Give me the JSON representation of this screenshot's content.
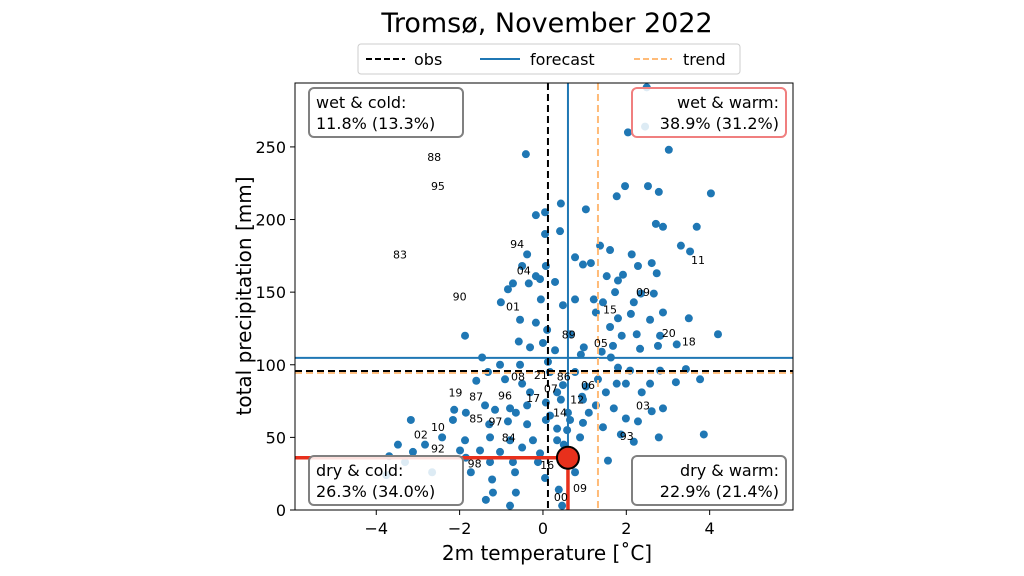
{
  "chart_data": {
    "type": "scatter",
    "title": "Tromsø, November 2022",
    "xlabel": "2m temperature [˚C]",
    "ylabel": "total precipitation [mm]",
    "xlim": [
      -5.95,
      6.0
    ],
    "ylim": [
      0,
      294
    ],
    "xticks": [
      -4,
      -2,
      0,
      2,
      4
    ],
    "xtick_labels": [
      "−4",
      "−2",
      "0",
      "2",
      "4"
    ],
    "yticks": [
      0,
      50,
      100,
      150,
      200,
      250
    ],
    "ytick_labels": [
      "0",
      "50",
      "100",
      "150",
      "200",
      "250"
    ],
    "grid": false,
    "legend": {
      "placement": "top-center",
      "entries": [
        {
          "label": "obs",
          "color": "#000000",
          "style": "dashed"
        },
        {
          "label": "forecast",
          "color": "#1f77b4",
          "style": "solid"
        },
        {
          "label": "trend",
          "color": "#ffbb78",
          "style": "dashed"
        }
      ]
    },
    "reference_lines": {
      "obs": {
        "temperature": 0.12,
        "precipitation": 95.7
      },
      "forecast": {
        "temperature": 0.6,
        "precipitation": 104.7
      },
      "trend": {
        "temperature": 1.32,
        "precipitation": 94.4
      }
    },
    "forecast_point": {
      "temperature": 0.6,
      "precipitation": 36,
      "color": "#e8301c"
    },
    "point_color": "#1f77b4",
    "quadrants": [
      {
        "name": "wet-cold",
        "title": "wet & cold:",
        "value": "11.8% (13.3%)",
        "position": "top-left",
        "border": "#808080"
      },
      {
        "name": "wet-warm",
        "title": "wet & warm:",
        "value": "38.9% (31.2%)",
        "position": "top-right",
        "border": "#f07f7f"
      },
      {
        "name": "dry-cold",
        "title": "dry & cold:",
        "value": "26.3% (34.0%)",
        "position": "bottom-left",
        "border": "#808080"
      },
      {
        "name": "dry-warm",
        "title": "dry & warm:",
        "value": "22.9% (21.4%)",
        "position": "bottom-right",
        "border": "#808080"
      }
    ],
    "year_labels": [
      {
        "label": "88",
        "x": -2.61,
        "y": 243
      },
      {
        "label": "95",
        "x": -2.52,
        "y": 223
      },
      {
        "label": "83",
        "x": -3.43,
        "y": 176
      },
      {
        "label": "94",
        "x": -0.62,
        "y": 183
      },
      {
        "label": "04",
        "x": -0.46,
        "y": 165
      },
      {
        "label": "90",
        "x": -2.0,
        "y": 147
      },
      {
        "label": "01",
        "x": -0.72,
        "y": 140
      },
      {
        "label": "11",
        "x": 3.72,
        "y": 172
      },
      {
        "label": "09",
        "x": 2.4,
        "y": 150
      },
      {
        "label": "15",
        "x": 1.61,
        "y": 138
      },
      {
        "label": "20",
        "x": 3.02,
        "y": 122
      },
      {
        "label": "18",
        "x": 3.5,
        "y": 116
      },
      {
        "label": "05",
        "x": 1.39,
        "y": 115
      },
      {
        "label": "89",
        "x": 0.62,
        "y": 121
      },
      {
        "label": "08",
        "x": -0.6,
        "y": 92
      },
      {
        "label": "21",
        "x": -0.05,
        "y": 93
      },
      {
        "label": "86",
        "x": 0.5,
        "y": 92
      },
      {
        "label": "07",
        "x": 0.19,
        "y": 87
      },
      {
        "label": "06",
        "x": 1.08,
        "y": 86
      },
      {
        "label": "19",
        "x": -2.1,
        "y": 81
      },
      {
        "label": "87",
        "x": -1.82,
        "y": 78
      },
      {
        "label": "96",
        "x": -0.91,
        "y": 79
      },
      {
        "label": "17",
        "x": -0.02,
        "y": 77
      },
      {
        "label": "12",
        "x": 0.82,
        "y": 76
      },
      {
        "label": "03",
        "x": 2.4,
        "y": 72
      },
      {
        "label": "14",
        "x": 0.41,
        "y": 67
      },
      {
        "label": "85",
        "x": -1.6,
        "y": 63
      },
      {
        "label": "97",
        "x": -1.5,
        "y": 61
      },
      {
        "label": "10",
        "x": -2.52,
        "y": 57
      },
      {
        "label": "02",
        "x": -2.93,
        "y": 52
      },
      {
        "label": "84",
        "x": -0.82,
        "y": 50
      },
      {
        "label": "93",
        "x": 2.01,
        "y": 51
      },
      {
        "label": "92",
        "x": -2.52,
        "y": 39
      },
      {
        "label": "98",
        "x": -2.0,
        "y": 32
      },
      {
        "label": "16",
        "x": 0.1,
        "y": 31
      },
      {
        "label": "09",
        "x": 0.89,
        "y": 15
      },
      {
        "label": "00",
        "x": 0.79,
        "y": 9
      }
    ],
    "points": [
      [
        2.49,
        291
      ],
      [
        2.04,
        260
      ],
      [
        3.02,
        248
      ],
      [
        2.45,
        264
      ],
      [
        -0.41,
        245
      ],
      [
        0.43,
        211
      ],
      [
        0.05,
        205
      ],
      [
        -0.17,
        203
      ],
      [
        1.97,
        223
      ],
      [
        2.52,
        223
      ],
      [
        2.78,
        219
      ],
      [
        4.03,
        218
      ],
      [
        1.77,
        216
      ],
      [
        3.69,
        195
      ],
      [
        2.88,
        195
      ],
      [
        2.71,
        197
      ],
      [
        1.03,
        207
      ],
      [
        0.41,
        192
      ],
      [
        0.05,
        190
      ],
      [
        -0.38,
        176
      ],
      [
        3.53,
        178
      ],
      [
        3.31,
        182
      ],
      [
        1.61,
        179
      ],
      [
        1.37,
        182
      ],
      [
        1.15,
        170
      ],
      [
        0.77,
        174
      ],
      [
        0.96,
        169
      ],
      [
        2.13,
        176
      ],
      [
        2.61,
        170
      ],
      [
        2.28,
        168
      ],
      [
        1.92,
        162
      ],
      [
        2.73,
        163
      ],
      [
        0.07,
        168
      ],
      [
        -0.5,
        168
      ],
      [
        -0.17,
        161
      ],
      [
        -0.72,
        156
      ],
      [
        -0.34,
        156
      ],
      [
        -0.07,
        159
      ],
      [
        1.53,
        161
      ],
      [
        1.8,
        158
      ],
      [
        2.66,
        149
      ],
      [
        2.35,
        149
      ],
      [
        1.73,
        150
      ],
      [
        2.18,
        143
      ],
      [
        1.44,
        143
      ],
      [
        1.22,
        145
      ],
      [
        1.8,
        132
      ],
      [
        2.11,
        135
      ],
      [
        2.57,
        131
      ],
      [
        1.61,
        126
      ],
      [
        1.27,
        136
      ],
      [
        2.88,
        136
      ],
      [
        3.5,
        132
      ],
      [
        4.2,
        121
      ],
      [
        3.21,
        114
      ],
      [
        3.43,
        97
      ],
      [
        2.81,
        120
      ],
      [
        2.25,
        121
      ],
      [
        1.89,
        120
      ],
      [
        0.77,
        145
      ],
      [
        0.48,
        141
      ],
      [
        -0.05,
        145
      ],
      [
        0.29,
        157
      ],
      [
        -0.84,
        152
      ],
      [
        -1.01,
        143
      ],
      [
        -0.55,
        131
      ],
      [
        -0.17,
        129
      ],
      [
        0.1,
        124
      ],
      [
        -1.87,
        120
      ],
      [
        -0.58,
        116
      ],
      [
        -0.31,
        112
      ],
      [
        0,
        115
      ],
      [
        0.29,
        110
      ],
      [
        0.65,
        121
      ],
      [
        0.98,
        112
      ],
      [
        1.41,
        109
      ],
      [
        1.68,
        113
      ],
      [
        2.33,
        111
      ],
      [
        2.76,
        113
      ],
      [
        -1.46,
        105
      ],
      [
        -1.03,
        100
      ],
      [
        -0.55,
        100
      ],
      [
        0.12,
        102
      ],
      [
        0.91,
        107
      ],
      [
        1.63,
        105
      ],
      [
        2.09,
        96
      ],
      [
        2.81,
        96
      ],
      [
        -1.32,
        95
      ],
      [
        0.17,
        95
      ],
      [
        0.77,
        95
      ],
      [
        1.8,
        98
      ],
      [
        -0.91,
        90
      ],
      [
        -0.5,
        87
      ],
      [
        0.48,
        86
      ],
      [
        1.32,
        90
      ],
      [
        1.99,
        87
      ],
      [
        2.57,
        87
      ],
      [
        3.19,
        88
      ],
      [
        3.77,
        90
      ],
      [
        -1.6,
        89
      ],
      [
        -0.31,
        81
      ],
      [
        0.34,
        81
      ],
      [
        0.94,
        78
      ],
      [
        1.51,
        81
      ],
      [
        1.77,
        87
      ],
      [
        2.37,
        81
      ],
      [
        -1.39,
        72
      ],
      [
        -0.79,
        70
      ],
      [
        -0.38,
        72
      ],
      [
        0.07,
        74
      ],
      [
        0.43,
        76
      ],
      [
        0.96,
        76
      ],
      [
        1.27,
        72
      ],
      [
        -2.13,
        69
      ],
      [
        -1.85,
        67
      ],
      [
        -1.15,
        69
      ],
      [
        -0.65,
        67
      ],
      [
        0.17,
        65
      ],
      [
        0.6,
        67
      ],
      [
        1.1,
        67
      ],
      [
        1.7,
        70
      ],
      [
        1.99,
        63
      ],
      [
        2.61,
        68
      ],
      [
        2.88,
        70
      ],
      [
        -3.17,
        62
      ],
      [
        -2.16,
        62
      ],
      [
        -1.29,
        59
      ],
      [
        -0.84,
        61
      ],
      [
        -0.38,
        59
      ],
      [
        0.34,
        56
      ],
      [
        0.96,
        60
      ],
      [
        1.44,
        57
      ],
      [
        2.28,
        61
      ],
      [
        2.78,
        50
      ],
      [
        3.86,
        52
      ],
      [
        -3.48,
        45
      ],
      [
        -2.83,
        45
      ],
      [
        -2.42,
        50
      ],
      [
        -1.87,
        48
      ],
      [
        -1.27,
        50
      ],
      [
        -0.79,
        48
      ],
      [
        -0.24,
        48
      ],
      [
        0.34,
        48
      ],
      [
        0.89,
        50
      ],
      [
        1.87,
        52
      ],
      [
        2.18,
        47
      ],
      [
        -3.69,
        37
      ],
      [
        -3.12,
        40
      ],
      [
        -1.99,
        41
      ],
      [
        -1.51,
        41
      ],
      [
        -1.03,
        40
      ],
      [
        -0.5,
        43
      ],
      [
        -0.07,
        39
      ],
      [
        0.5,
        45
      ],
      [
        -1.85,
        36
      ],
      [
        -1.27,
        33
      ],
      [
        -0.72,
        33
      ],
      [
        -0.12,
        33
      ],
      [
        1.56,
        34
      ],
      [
        -1.73,
        26
      ],
      [
        -1.22,
        21
      ],
      [
        -0.67,
        26
      ],
      [
        0.05,
        22
      ],
      [
        0.77,
        26
      ],
      [
        -1.2,
        12
      ],
      [
        -0.65,
        12
      ],
      [
        0.38,
        14
      ],
      [
        -1.37,
        7
      ],
      [
        -0.79,
        3
      ],
      [
        0.46,
        3
      ],
      [
        -3.76,
        24
      ],
      [
        -3.31,
        33
      ],
      [
        -2.66,
        26
      ],
      [
        0.58,
        55
      ],
      [
        0.65,
        62
      ],
      [
        0.07,
        62
      ],
      [
        0.7,
        38
      ],
      [
        1.03,
        85
      ]
    ]
  }
}
